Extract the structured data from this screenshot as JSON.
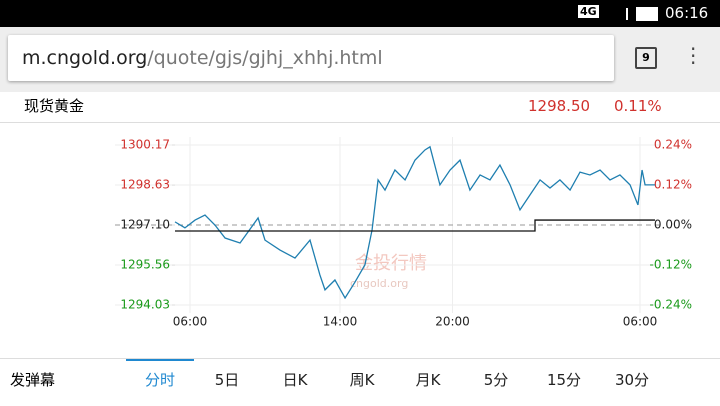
{
  "status_bar": {
    "network": "4G",
    "time": "06:16"
  },
  "browser": {
    "url_host": "m.cngold.org",
    "url_path": "/quote/gjs/gjhj_xhhj.html",
    "tabs": "9"
  },
  "quote": {
    "name": "现货黄金",
    "price": "1298.50",
    "change": "0.11%"
  },
  "watermark": {
    "title": "金投行情",
    "site": "cngold.org"
  },
  "chart_data": {
    "type": "line",
    "xlim": [
      -0.8,
      24.8
    ],
    "xticks": [
      {
        "value": 0,
        "label": "06:00"
      },
      {
        "value": 8,
        "label": "14:00"
      },
      {
        "value": 14,
        "label": "20:00"
      },
      {
        "value": 24,
        "label": "06:00"
      }
    ],
    "ylim": [
      1294.03,
      1300.17
    ],
    "yticks": [
      1294.03,
      1295.56,
      {
        "value": 1297.1,
        "label": "1297.10"
      },
      1298.63,
      1300.17
    ],
    "y2lim": [
      -0.24,
      0.24
    ],
    "y2ticks": [
      {
        "value": -0.24,
        "label": "-0.24%"
      },
      {
        "value": -0.12,
        "label": "-0.12%"
      },
      {
        "value": 0,
        "label": "0.00%"
      },
      {
        "value": 0.12,
        "label": "0.12%"
      },
      {
        "value": 0.24,
        "label": "0.24%"
      }
    ],
    "up_color": "#d0312d",
    "down_color": "#1a9a1a",
    "grid": true,
    "series": [
      {
        "color": "#1f7fb0",
        "x": [
          -0.8,
          -0.27,
          0.27,
          0.8,
          1.33,
          1.87,
          2.67,
          3.63,
          4.0,
          4.8,
          5.6,
          6.4,
          6.93,
          7.2,
          7.73,
          8.27,
          8.8,
          9.33,
          9.71,
          10.03,
          10.4,
          10.93,
          11.47,
          12.0,
          12.53,
          12.8,
          13.33,
          13.87,
          14.4,
          14.93,
          15.47,
          16.0,
          16.53,
          17.07,
          17.6,
          18.13,
          18.67,
          19.2,
          19.73,
          20.27,
          20.8,
          21.33,
          21.87,
          22.4,
          22.93,
          23.47,
          23.89,
          24.11,
          24.27,
          24.8
        ],
        "values": [
          1297.22,
          1296.99,
          1297.29,
          1297.48,
          1297.1,
          1296.6,
          1296.41,
          1297.37,
          1296.52,
          1296.14,
          1295.83,
          1296.52,
          1295.18,
          1294.61,
          1294.99,
          1294.3,
          1294.91,
          1295.57,
          1296.91,
          1298.83,
          1298.44,
          1299.21,
          1298.83,
          1299.59,
          1299.98,
          1300.1,
          1298.64,
          1299.21,
          1299.59,
          1298.44,
          1299.02,
          1298.83,
          1299.4,
          1298.64,
          1297.68,
          1298.25,
          1298.83,
          1298.52,
          1298.83,
          1298.44,
          1299.13,
          1299.02,
          1299.21,
          1298.83,
          1299.02,
          1298.64,
          1297.87,
          1299.21,
          1298.64,
          1298.64
        ]
      },
      {
        "color": "#111111",
        "x": [
          -0.8,
          18.4,
          18.4,
          24.8
        ],
        "values": [
          1296.87,
          1296.87,
          1297.29,
          1297.29
        ]
      }
    ]
  },
  "tabs": {
    "danmaku": "发弹幕",
    "items": [
      "分时",
      "5日",
      "日K",
      "周K",
      "月K",
      "5分",
      "15分",
      "30分"
    ]
  }
}
